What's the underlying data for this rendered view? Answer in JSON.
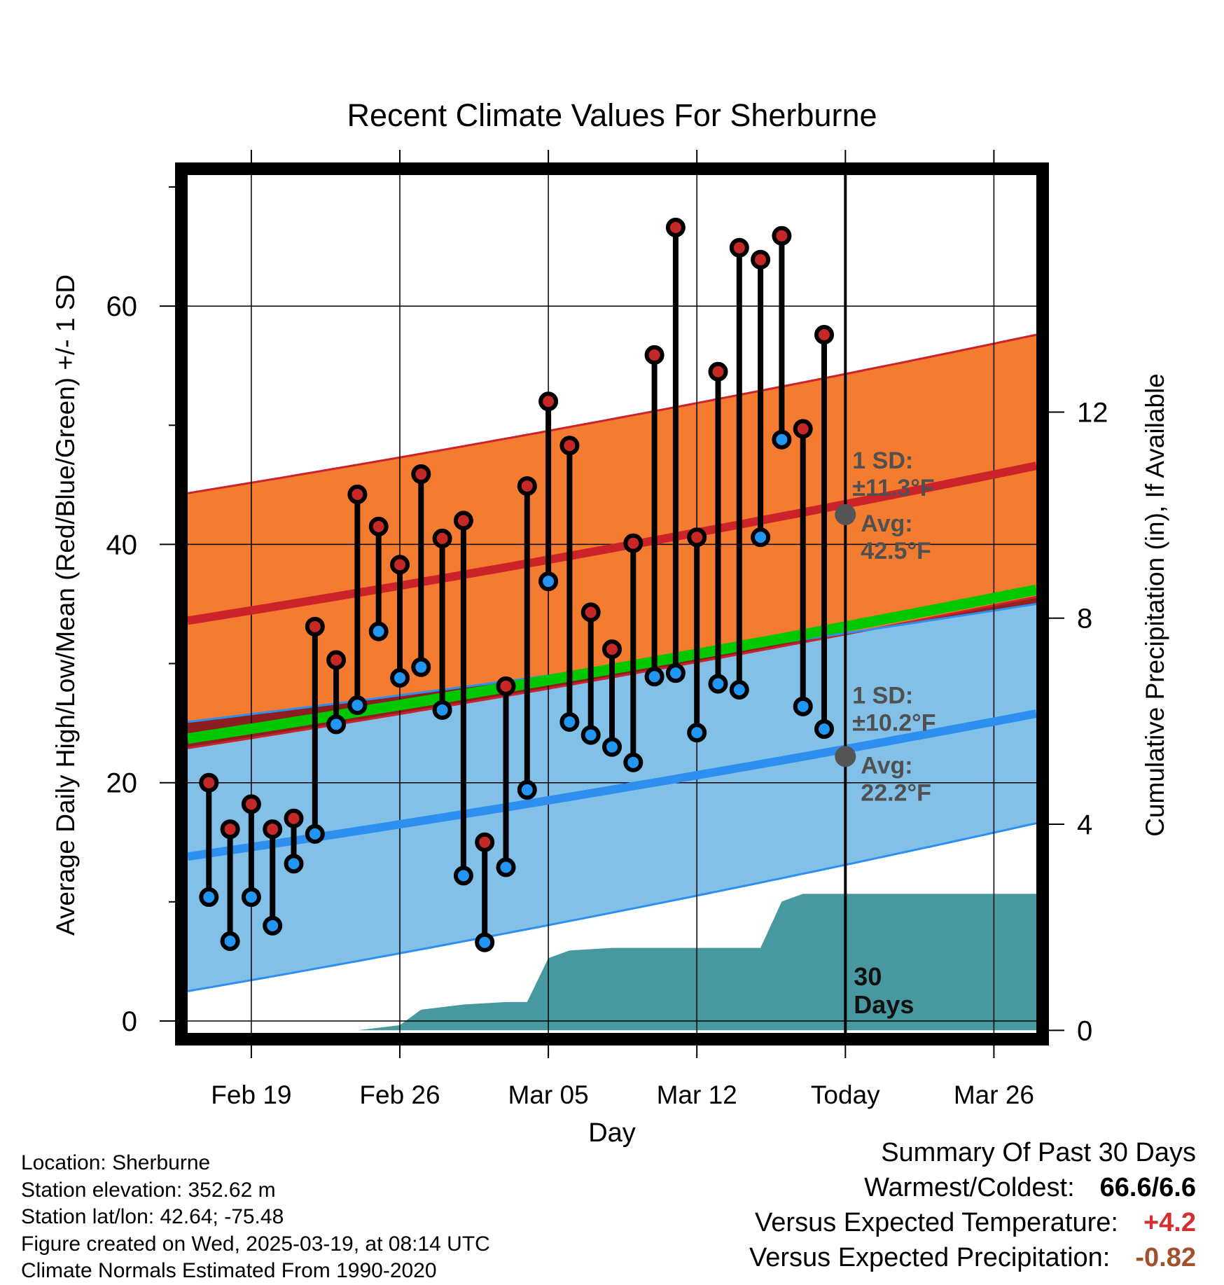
{
  "chart_data": {
    "type": "line",
    "title": "Recent Climate Values For Sherburne",
    "xlabel": "Day",
    "ylabel": "Average Daily High/Low/Mean (Red/Blue/Green) +/- 1 SD",
    "y2label": "Cumulative Precipitation (in), If Available",
    "x_tick_labels": [
      "Feb 19",
      "Feb 26",
      "Mar 05",
      "Mar 12",
      "Today",
      "Mar 26"
    ],
    "x_tick_dates": [
      "2025-02-19",
      "2025-02-26",
      "2025-03-05",
      "2025-03-12",
      "2025-03-19",
      "2025-03-26"
    ],
    "x_range": [
      "2025-02-16",
      "2025-03-28"
    ],
    "today": "2025-03-19",
    "ylim": [
      -1,
      71
    ],
    "y_ticks": [
      0,
      20,
      40,
      60
    ],
    "y2lim": [
      -0.05,
      16.6
    ],
    "y2_ticks": [
      0,
      4,
      8,
      12
    ],
    "grid": true,
    "colors": {
      "high": "#cc2229",
      "high_band": "#f47c30",
      "low": "#2d8ff0",
      "low_band": "#82c0e8",
      "mean": "#00c800",
      "overlap": "#8c1515",
      "precip": "#48999f",
      "marker_high": "#c62828",
      "marker_low": "#2196f3",
      "today_marker": "#555555",
      "anno": "#505050",
      "temp_anomaly": "#d32f2f",
      "precip_anomaly": "#a0522d"
    },
    "normals": {
      "dates": [
        "2025-02-16",
        "2025-03-28"
      ],
      "high_mean": [
        33.6,
        46.6
      ],
      "high_sd": [
        10.7,
        11.0
      ],
      "low_mean": [
        13.8,
        25.8
      ],
      "low_sd": [
        11.3,
        9.2
      ],
      "mean_mean": [
        23.7,
        36.2
      ]
    },
    "daily": {
      "dates": [
        "2025-02-17",
        "2025-02-18",
        "2025-02-19",
        "2025-02-20",
        "2025-02-21",
        "2025-02-22",
        "2025-02-23",
        "2025-02-24",
        "2025-02-25",
        "2025-02-26",
        "2025-02-27",
        "2025-02-28",
        "2025-03-01",
        "2025-03-02",
        "2025-03-03",
        "2025-03-04",
        "2025-03-05",
        "2025-03-06",
        "2025-03-07",
        "2025-03-08",
        "2025-03-09",
        "2025-03-10",
        "2025-03-11",
        "2025-03-12",
        "2025-03-13",
        "2025-03-14",
        "2025-03-15",
        "2025-03-16",
        "2025-03-17",
        "2025-03-18"
      ],
      "high": [
        20.0,
        16.1,
        18.2,
        16.1,
        17.0,
        33.1,
        30.3,
        44.2,
        41.5,
        38.3,
        45.9,
        40.5,
        42.0,
        15.0,
        28.1,
        44.9,
        52.0,
        48.3,
        34.3,
        31.2,
        40.1,
        55.9,
        66.6,
        40.6,
        54.5,
        64.9,
        63.9,
        65.9,
        49.7,
        57.6
      ],
      "low": [
        10.4,
        6.7,
        10.4,
        8.0,
        13.2,
        15.7,
        24.9,
        26.5,
        32.7,
        28.8,
        29.7,
        26.1,
        12.2,
        6.6,
        12.9,
        19.4,
        36.9,
        25.1,
        24.0,
        23.0,
        21.7,
        28.9,
        29.2,
        24.2,
        28.3,
        27.8,
        40.6,
        48.8,
        26.4,
        24.5
      ]
    },
    "precip": {
      "dates": [
        "2025-02-16",
        "2025-02-24",
        "2025-02-25",
        "2025-02-26",
        "2025-02-27",
        "2025-03-01",
        "2025-03-03",
        "2025-03-04",
        "2025-03-05",
        "2025-03-06",
        "2025-03-08",
        "2025-03-10",
        "2025-03-15",
        "2025-03-16",
        "2025-03-17",
        "2025-03-28"
      ],
      "values": [
        0,
        0,
        0.05,
        0.1,
        0.4,
        0.5,
        0.55,
        0.55,
        1.4,
        1.55,
        1.6,
        1.6,
        1.6,
        2.5,
        2.65,
        2.65
      ]
    },
    "annotations": {
      "high_sd_label": "1 SD:",
      "high_sd_value": "±11.3°F",
      "high_avg_label": "Avg:",
      "high_avg_value": "42.5°F",
      "high_avg": 42.5,
      "low_sd_label": "1 SD:",
      "low_sd_value": "±10.2°F",
      "low_avg_label": "Avg:",
      "low_avg_value": "22.2°F",
      "low_avg": 22.2,
      "days_label_1": "30",
      "days_label_2": "Days"
    }
  },
  "info": {
    "location": "Location: Sherburne",
    "elevation": "Station elevation: 352.62 m",
    "latlon": "Station lat/lon: 42.64; -75.48",
    "created": "Figure created on Wed, 2025-03-19, at 08:14 UTC",
    "normals": "Climate Normals Estimated From 1990-2020"
  },
  "summary": {
    "title": "Summary Of Past 30 Days",
    "warmest_label": "Warmest/Coldest:",
    "warmest_value": "66.6/6.6",
    "temp_label": "Versus Expected Temperature:",
    "temp_value": "+4.2",
    "precip_label": "Versus Expected Precipitation:",
    "precip_value": "-0.82"
  }
}
